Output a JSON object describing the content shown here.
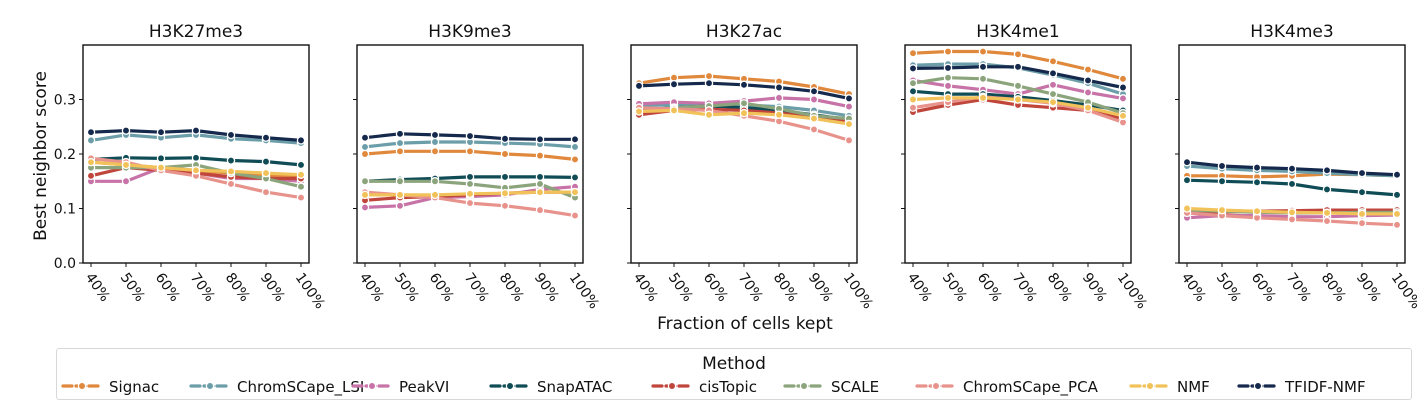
{
  "chart_data": {
    "type": "line",
    "xlabel": "Fraction of cells kept",
    "ylabel": "Best neighbor score",
    "categories": [
      "40%",
      "50%",
      "60%",
      "70%",
      "80%",
      "90%",
      "100%"
    ],
    "yticks": [
      "0.0",
      "0.1",
      "0.2",
      "0.3"
    ],
    "ylim": [
      0,
      0.4
    ],
    "legend": {
      "title": "Method",
      "placement": "bottom"
    },
    "series_styles": [
      {
        "name": "Signac",
        "color": "#e0883c"
      },
      {
        "name": "ChromSCape_LSI",
        "color": "#6b9ea8"
      },
      {
        "name": "PeakVI",
        "color": "#c873a8"
      },
      {
        "name": "SnapATAC",
        "color": "#0f4c55"
      },
      {
        "name": "cisTopic",
        "color": "#c0463c"
      },
      {
        "name": "SCALE",
        "color": "#8ca47c"
      },
      {
        "name": "ChromSCape_PCA",
        "color": "#e8928c"
      },
      {
        "name": "NMF",
        "color": "#f2c25a"
      },
      {
        "name": "TFIDF-NMF",
        "color": "#15294d"
      }
    ],
    "panels": [
      {
        "title": "H3K27me3",
        "series": [
          {
            "name": "Signac",
            "values": [
              0.185,
              0.18,
              0.175,
              0.17,
              0.165,
              0.16,
              0.16
            ]
          },
          {
            "name": "ChromSCape_LSI",
            "values": [
              0.225,
              0.235,
              0.23,
              0.235,
              0.228,
              0.225,
              0.22
            ]
          },
          {
            "name": "PeakVI",
            "values": [
              0.15,
              0.15,
              0.175,
              0.165,
              0.155,
              0.155,
              0.15
            ]
          },
          {
            "name": "SnapATAC",
            "values": [
              0.19,
              0.193,
              0.192,
              0.193,
              0.188,
              0.186,
              0.18
            ]
          },
          {
            "name": "cisTopic",
            "values": [
              0.16,
              0.175,
              0.17,
              0.165,
              0.158,
              0.155,
              0.155
            ]
          },
          {
            "name": "SCALE",
            "values": [
              0.175,
              0.175,
              0.175,
              0.18,
              0.165,
              0.155,
              0.14
            ]
          },
          {
            "name": "ChromSCape_PCA",
            "values": [
              0.192,
              0.185,
              0.17,
              0.16,
              0.145,
              0.13,
              0.12
            ]
          },
          {
            "name": "NMF",
            "values": [
              0.185,
              0.18,
              0.175,
              0.17,
              0.168,
              0.165,
              0.162
            ]
          },
          {
            "name": "TFIDF-NMF",
            "values": [
              0.24,
              0.243,
              0.24,
              0.243,
              0.235,
              0.23,
              0.225
            ]
          }
        ]
      },
      {
        "title": "H3K9me3",
        "series": [
          {
            "name": "Signac",
            "values": [
              0.2,
              0.205,
              0.205,
              0.205,
              0.2,
              0.197,
              0.19
            ]
          },
          {
            "name": "ChromSCape_LSI",
            "values": [
              0.213,
              0.22,
              0.222,
              0.222,
              0.22,
              0.218,
              0.213
            ]
          },
          {
            "name": "PeakVI",
            "values": [
              0.102,
              0.105,
              0.12,
              0.122,
              0.125,
              0.135,
              0.14
            ]
          },
          {
            "name": "SnapATAC",
            "values": [
              0.15,
              0.153,
              0.155,
              0.158,
              0.158,
              0.158,
              0.157
            ]
          },
          {
            "name": "cisTopic",
            "values": [
              0.115,
              0.12,
              0.122,
              0.125,
              0.128,
              0.13,
              0.13
            ]
          },
          {
            "name": "SCALE",
            "values": [
              0.15,
              0.15,
              0.15,
              0.145,
              0.138,
              0.145,
              0.12
            ]
          },
          {
            "name": "ChromSCape_PCA",
            "values": [
              0.13,
              0.125,
              0.12,
              0.11,
              0.105,
              0.097,
              0.087
            ]
          },
          {
            "name": "NMF",
            "values": [
              0.125,
              0.125,
              0.125,
              0.127,
              0.128,
              0.13,
              0.13
            ]
          },
          {
            "name": "TFIDF-NMF",
            "values": [
              0.23,
              0.237,
              0.235,
              0.233,
              0.228,
              0.227,
              0.227
            ]
          }
        ]
      },
      {
        "title": "H3K27ac",
        "series": [
          {
            "name": "Signac",
            "values": [
              0.33,
              0.34,
              0.343,
              0.338,
              0.333,
              0.323,
              0.31
            ]
          },
          {
            "name": "ChromSCape_LSI",
            "values": [
              0.29,
              0.29,
              0.29,
              0.29,
              0.287,
              0.28,
              0.27
            ]
          },
          {
            "name": "PeakVI",
            "values": [
              0.292,
              0.295,
              0.293,
              0.297,
              0.303,
              0.3,
              0.287
            ]
          },
          {
            "name": "SnapATAC",
            "values": [
              0.28,
              0.285,
              0.288,
              0.285,
              0.28,
              0.272,
              0.263
            ]
          },
          {
            "name": "cisTopic",
            "values": [
              0.272,
              0.28,
              0.282,
              0.28,
              0.275,
              0.268,
              0.26
            ]
          },
          {
            "name": "SCALE",
            "values": [
              0.28,
              0.285,
              0.288,
              0.293,
              0.283,
              0.27,
              0.265
            ]
          },
          {
            "name": "ChromSCape_PCA",
            "values": [
              0.285,
              0.283,
              0.28,
              0.27,
              0.26,
              0.245,
              0.225
            ]
          },
          {
            "name": "NMF",
            "values": [
              0.278,
              0.28,
              0.272,
              0.275,
              0.272,
              0.265,
              0.255
            ]
          },
          {
            "name": "TFIDF-NMF",
            "values": [
              0.325,
              0.328,
              0.33,
              0.327,
              0.322,
              0.315,
              0.302
            ]
          }
        ]
      },
      {
        "title": "H3K4me1",
        "series": [
          {
            "name": "Signac",
            "values": [
              0.385,
              0.388,
              0.388,
              0.383,
              0.37,
              0.355,
              0.338
            ]
          },
          {
            "name": "ChromSCape_LSI",
            "values": [
              0.363,
              0.365,
              0.365,
              0.358,
              0.345,
              0.33,
              0.31
            ]
          },
          {
            "name": "PeakVI",
            "values": [
              0.335,
              0.325,
              0.318,
              0.31,
              0.327,
              0.313,
              0.302
            ]
          },
          {
            "name": "SnapATAC",
            "values": [
              0.315,
              0.31,
              0.31,
              0.305,
              0.298,
              0.29,
              0.28
            ]
          },
          {
            "name": "cisTopic",
            "values": [
              0.277,
              0.29,
              0.3,
              0.29,
              0.285,
              0.28,
              0.265
            ]
          },
          {
            "name": "SCALE",
            "values": [
              0.33,
              0.34,
              0.338,
              0.325,
              0.31,
              0.295,
              0.275
            ]
          },
          {
            "name": "ChromSCape_PCA",
            "values": [
              0.285,
              0.295,
              0.305,
              0.3,
              0.293,
              0.28,
              0.258
            ]
          },
          {
            "name": "NMF",
            "values": [
              0.3,
              0.303,
              0.303,
              0.3,
              0.295,
              0.285,
              0.27
            ]
          },
          {
            "name": "TFIDF-NMF",
            "values": [
              0.357,
              0.358,
              0.36,
              0.36,
              0.348,
              0.335,
              0.322
            ]
          }
        ]
      },
      {
        "title": "H3K4me3",
        "series": [
          {
            "name": "Signac",
            "values": [
              0.16,
              0.16,
              0.158,
              0.16,
              0.163,
              0.162,
              0.16
            ]
          },
          {
            "name": "ChromSCape_LSI",
            "values": [
              0.178,
              0.173,
              0.17,
              0.168,
              0.165,
              0.162,
              0.16
            ]
          },
          {
            "name": "PeakVI",
            "values": [
              0.083,
              0.087,
              0.087,
              0.085,
              0.085,
              0.087,
              0.088
            ]
          },
          {
            "name": "SnapATAC",
            "values": [
              0.152,
              0.15,
              0.148,
              0.145,
              0.135,
              0.13,
              0.125
            ]
          },
          {
            "name": "cisTopic",
            "values": [
              0.095,
              0.093,
              0.095,
              0.096,
              0.097,
              0.097,
              0.097
            ]
          },
          {
            "name": "SCALE",
            "values": [
              0.097,
              0.095,
              0.093,
              0.092,
              0.092,
              0.093,
              0.093
            ]
          },
          {
            "name": "ChromSCape_PCA",
            "values": [
              0.092,
              0.087,
              0.083,
              0.08,
              0.077,
              0.073,
              0.07
            ]
          },
          {
            "name": "NMF",
            "values": [
              0.1,
              0.097,
              0.095,
              0.093,
              0.092,
              0.09,
              0.09
            ]
          },
          {
            "name": "TFIDF-NMF",
            "values": [
              0.185,
              0.178,
              0.175,
              0.173,
              0.17,
              0.165,
              0.162
            ]
          }
        ]
      }
    ]
  }
}
